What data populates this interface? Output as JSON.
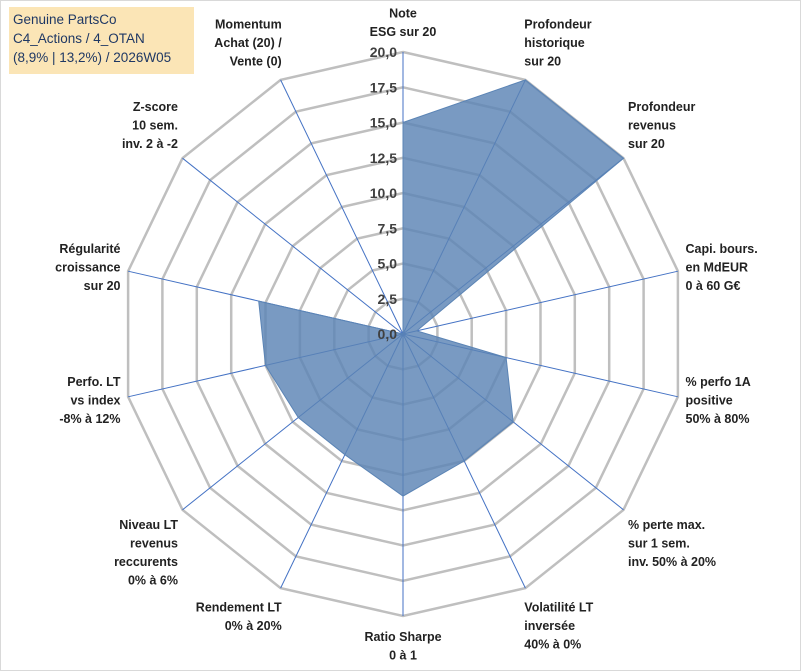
{
  "title": {
    "line1": "Genuine PartsCo",
    "line2": "C4_Actions / 4_OTAN",
    "line3": "(8,9% | 13,2%) / 2026W05"
  },
  "colors": {
    "grid": "#bfbfbf",
    "axis": "#4472c4",
    "fill": "#5b84b5",
    "title_bg": "#fbe5b6",
    "title_text": "#1f3864"
  },
  "chart_data": {
    "type": "radar",
    "rmin": 0,
    "rmax": 20,
    "step": 2.5,
    "tick_labels": [
      "0,0",
      "2,5",
      "5,0",
      "7,5",
      "10,0",
      "12,5",
      "15,0",
      "17,5",
      "20,0"
    ],
    "axes": [
      {
        "label": [
          "Note",
          "ESG sur 20"
        ],
        "value": 15
      },
      {
        "label": [
          "Profondeur",
          "historique",
          "sur 20"
        ],
        "value": 20
      },
      {
        "label": [
          "Profondeur",
          "revenus",
          "sur 20"
        ],
        "value": 20
      },
      {
        "label": [
          "Capi. bours.",
          "en MdEUR",
          "0 à 60 G€"
        ],
        "value": 1
      },
      {
        "label": [
          "% perfo 1A",
          "positive",
          "50% à 80%"
        ],
        "value": 7.5
      },
      {
        "label": [
          "% perte max.",
          "sur 1 sem.",
          "inv. 50% à 20%"
        ],
        "value": 10
      },
      {
        "label": [
          "Volatilité LT",
          "inversée",
          "40% à 0%"
        ],
        "value": 10
      },
      {
        "label": [
          "Ratio Sharpe",
          "0 à 1"
        ],
        "value": 11.5
      },
      {
        "label": [
          "Rendement LT",
          "0% à 20%"
        ],
        "value": 9.5
      },
      {
        "label": [
          "Niveau LT",
          "revenus",
          "reccurents",
          "0% à 6%"
        ],
        "value": 9.5
      },
      {
        "label": [
          "Perfo. LT",
          "vs index",
          "-8% à 12%"
        ],
        "value": 10
      },
      {
        "label": [
          "Régularité",
          "croissance",
          "sur 20"
        ],
        "value": 10.5
      },
      {
        "label": [
          "Z-score",
          "10 sem.",
          "inv. 2 à -2"
        ],
        "value": 0
      },
      {
        "label": [
          "Momentum",
          "Achat (20) /",
          "Vente (0)"
        ],
        "value": 0
      }
    ]
  }
}
